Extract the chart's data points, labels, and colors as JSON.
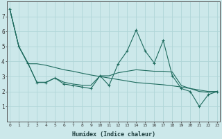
{
  "xlabel": "Humidex (Indice chaleur)",
  "x": [
    0,
    1,
    2,
    3,
    4,
    5,
    6,
    7,
    8,
    9,
    10,
    11,
    12,
    13,
    14,
    15,
    16,
    17,
    18,
    19,
    20,
    21,
    22,
    23
  ],
  "line_main": [
    7.5,
    5.0,
    3.9,
    2.6,
    2.6,
    2.9,
    2.5,
    2.4,
    2.3,
    2.2,
    3.05,
    2.4,
    3.85,
    4.7,
    6.1,
    4.7,
    3.9,
    5.4,
    3.05,
    2.2,
    2.0,
    1.0,
    1.8,
    2.0
  ],
  "line_smooth1": [
    7.5,
    5.0,
    3.85,
    3.85,
    3.75,
    3.6,
    3.45,
    3.35,
    3.22,
    3.1,
    3.0,
    2.9,
    2.8,
    2.7,
    2.6,
    2.55,
    2.5,
    2.45,
    2.38,
    2.3,
    2.2,
    2.1,
    2.0,
    2.0
  ],
  "line_smooth2": [
    7.5,
    5.0,
    3.9,
    2.62,
    2.62,
    2.9,
    2.62,
    2.5,
    2.42,
    2.42,
    3.05,
    3.05,
    3.25,
    3.35,
    3.45,
    3.4,
    3.35,
    3.35,
    3.3,
    2.4,
    2.2,
    2.0,
    1.95,
    2.0
  ],
  "bg_color": "#cce8ea",
  "grid_color": "#b0d5d8",
  "line_color": "#1e6b5e",
  "ylim": [
    0,
    8
  ],
  "yticks": [
    1,
    2,
    3,
    4,
    5,
    6,
    7
  ],
  "xticks": [
    0,
    1,
    2,
    3,
    4,
    5,
    6,
    7,
    8,
    9,
    10,
    11,
    12,
    13,
    14,
    15,
    16,
    17,
    18,
    19,
    20,
    21,
    22,
    23
  ]
}
